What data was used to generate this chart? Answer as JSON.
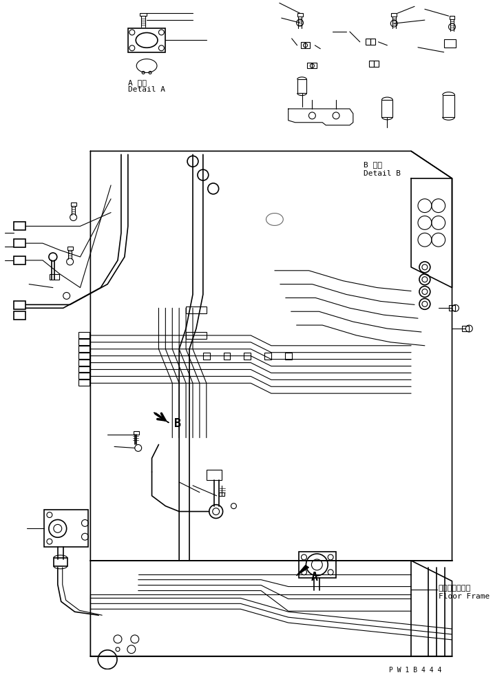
{
  "background_color": "#ffffff",
  "line_color": "#000000",
  "fig_width": 7.32,
  "fig_height": 9.8,
  "dpi": 100,
  "text_detail_a_jp": "A 詳細",
  "text_detail_a_en": "Detail A",
  "text_detail_b_jp": "B 詳細",
  "text_detail_b_en": "Detail B",
  "text_floor_frame_jp": "フロアフレーム",
  "text_floor_frame_en": "Floor Frame",
  "text_label_a": "A",
  "text_label_b": "B",
  "text_pw": "P W 1 B 4 4 4"
}
